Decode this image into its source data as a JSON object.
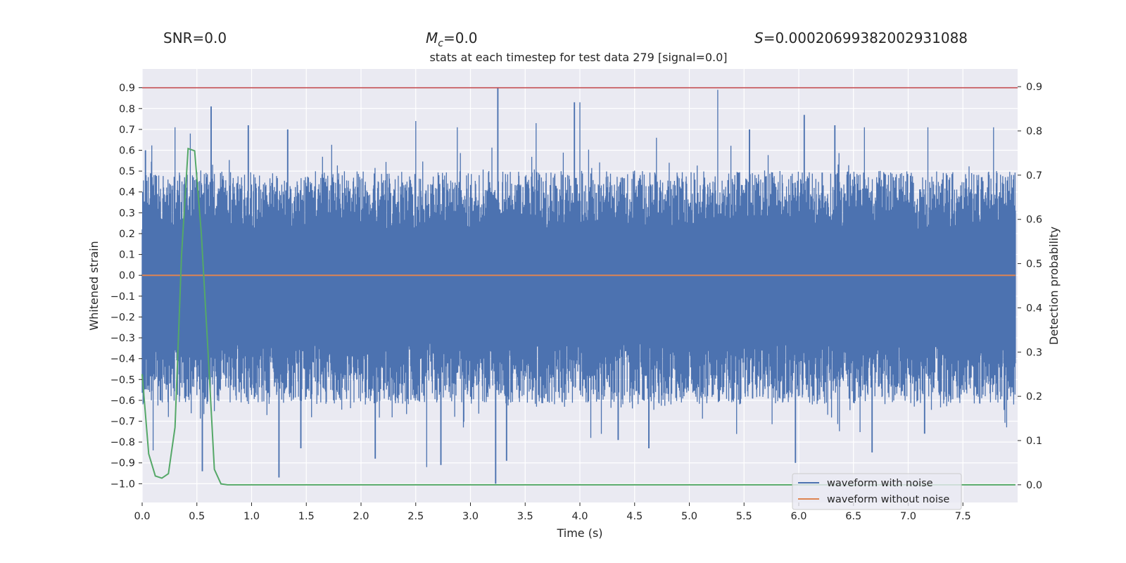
{
  "header": {
    "snr_text": "SNR=0.0",
    "mc_symbol": "M",
    "mc_sub": "c",
    "mc_value": "=0.0",
    "s_symbol": "S",
    "s_value": "=0.00020699382002931088"
  },
  "chart_data": {
    "type": "line",
    "title": "stats at each timestep for test data 279 [signal=0.0]",
    "xlabel": "Time (s)",
    "ylabel": "Whitened strain",
    "ylabel_right": "Detection probability",
    "xlim": [
      0.0,
      8.0
    ],
    "ylim": [
      -1.09,
      0.99
    ],
    "ylim_right": [
      -0.04,
      0.94
    ],
    "x_ticks": [
      "0.0",
      "0.5",
      "1.0",
      "1.5",
      "2.0",
      "2.5",
      "3.0",
      "3.5",
      "4.0",
      "4.5",
      "5.0",
      "5.5",
      "6.0",
      "6.5",
      "7.0",
      "7.5"
    ],
    "y_ticks": [
      "0.9",
      "0.8",
      "0.7",
      "0.6",
      "0.5",
      "0.4",
      "0.3",
      "0.2",
      "0.1",
      "0.0",
      "−0.1",
      "−0.2",
      "−0.3",
      "−0.4",
      "−0.5",
      "−0.6",
      "−0.7",
      "−0.8",
      "−0.9",
      "−1.0"
    ],
    "y_ticks_right": [
      "0.9",
      "0.8",
      "0.7",
      "0.6",
      "0.5",
      "0.4",
      "0.3",
      "0.2",
      "0.1",
      "0.0"
    ],
    "threshold_line": {
      "y": 0.9,
      "color": "#c44e52"
    },
    "grid": true,
    "legend_position": "lower-right",
    "series": [
      {
        "name": "waveform with noise",
        "color": "#4c72b0",
        "axis": "left",
        "envelope": true,
        "peaks_x": [
          0.03,
          0.3,
          0.44,
          0.63,
          0.97,
          1.33,
          2.5,
          2.88,
          3.25,
          3.6,
          3.95,
          4.0,
          4.7,
          5.26,
          5.55,
          6.05,
          6.33,
          6.6,
          7.18,
          7.78
        ],
        "peaks_y": [
          0.6,
          0.71,
          0.68,
          0.81,
          0.72,
          0.7,
          0.74,
          0.71,
          0.9,
          0.73,
          0.83,
          0.83,
          0.66,
          0.89,
          0.7,
          0.77,
          0.72,
          0.71,
          0.71,
          0.71
        ],
        "troughs_x": [
          0.1,
          0.55,
          1.25,
          1.45,
          2.13,
          2.6,
          2.73,
          3.23,
          3.33,
          4.1,
          4.35,
          4.63,
          5.97,
          6.67,
          7.15
        ],
        "troughs_y": [
          -0.84,
          -0.94,
          -0.97,
          -0.83,
          -0.88,
          -0.92,
          -0.91,
          -1.0,
          -0.89,
          -0.78,
          -0.79,
          -0.83,
          -0.9,
          -0.85,
          -0.76
        ]
      },
      {
        "name": "waveform without noise",
        "color": "#dd8452",
        "axis": "left",
        "x": [
          0.0,
          7.98
        ],
        "y": [
          0.0,
          0.0
        ]
      },
      {
        "name": "",
        "color": "#55a868",
        "axis": "right",
        "x": [
          0.0,
          0.06,
          0.12,
          0.18,
          0.24,
          0.3,
          0.36,
          0.42,
          0.48,
          0.54,
          0.6,
          0.66,
          0.72,
          0.78,
          0.84,
          0.9,
          1.0,
          2.0,
          3.0,
          4.0,
          5.0,
          6.0,
          7.0,
          7.98
        ],
        "y": [
          0.25,
          0.07,
          0.02,
          0.015,
          0.025,
          0.13,
          0.52,
          0.76,
          0.755,
          0.57,
          0.31,
          0.035,
          0.002,
          0.0,
          0.0,
          0.0,
          0.0,
          0.0,
          0.0,
          0.0,
          0.0,
          0.0,
          0.0,
          0.0
        ]
      }
    ]
  }
}
